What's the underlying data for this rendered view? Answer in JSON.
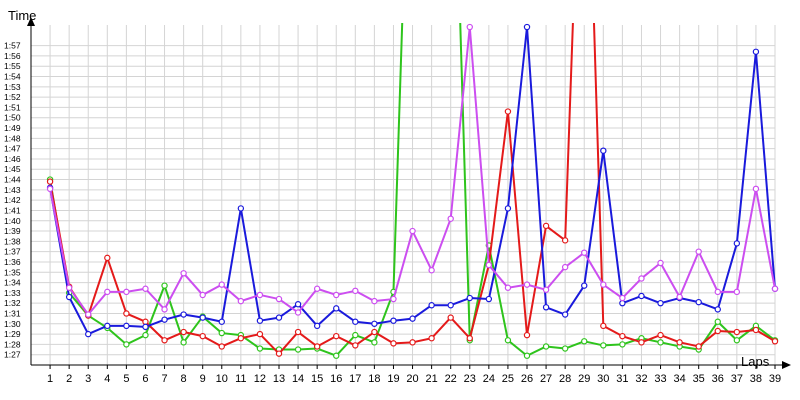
{
  "chart_data": {
    "type": "line",
    "title": "",
    "xlabel": "Laps",
    "ylabel": "Time",
    "grid": true,
    "legend": "none",
    "x": [
      1,
      2,
      3,
      4,
      5,
      6,
      7,
      8,
      9,
      10,
      11,
      12,
      13,
      14,
      15,
      16,
      17,
      18,
      19,
      20,
      21,
      22,
      23,
      24,
      25,
      26,
      27,
      28,
      29,
      30,
      31,
      32,
      33,
      34,
      35,
      36,
      37,
      38,
      39
    ],
    "xlim": [
      0,
      39
    ],
    "ylim": [
      "1:26",
      "1:59"
    ],
    "y_ticks": [
      "1:27",
      "1:28",
      "1:29",
      "1:30",
      "1:31",
      "1:32",
      "1:33",
      "1:34",
      "1:35",
      "1:36",
      "1:37",
      "1:38",
      "1:39",
      "1:40",
      "1:41",
      "1:42",
      "1:43",
      "1:44",
      "1:45",
      "1:46",
      "1:47",
      "1:48",
      "1:49",
      "1:50",
      "1:51",
      "1:52",
      "1:53",
      "1:54",
      "1:55",
      "1:56",
      "1:57"
    ],
    "series": [
      {
        "color": "#2ec41c",
        "values": [
          "1:44.0",
          "1:33.0",
          "1:30.8",
          "1:29.6",
          "1:28.0",
          "1:28.9",
          "1:33.7",
          "1:28.2",
          "1:30.7",
          "1:29.1",
          "1:28.9",
          "1:27.6",
          "1:27.5",
          "1:27.5",
          "1:27.6",
          "1:26.9",
          "1:28.9",
          "1:28.2",
          "1:33.1",
          "2:30.0",
          "2:30.0",
          "2:30.0",
          "1:28.4",
          "1:37.6",
          "1:28.4",
          "1:26.9",
          "1:27.8",
          "1:27.6",
          "1:28.3",
          "1:27.9",
          "1:28.0",
          "1:28.6",
          "1:28.2",
          "1:27.8",
          "1:27.5",
          "1:30.2",
          "1:28.4",
          "1:29.8",
          "1:28.4"
        ]
      },
      {
        "color": "#e41a1a",
        "values": [
          "1:43.8",
          "1:33.6",
          "1:30.8",
          "1:36.4",
          "1:31.0",
          "1:30.2",
          "1:28.4",
          "1:29.2",
          "1:28.8",
          "1:27.8",
          "1:28.6",
          "1:29.0",
          "1:27.1",
          "1:29.2",
          "1:27.8",
          "1:28.8",
          "1:27.9",
          "1:29.2",
          "1:28.1",
          "1:28.2",
          "1:28.6",
          "1:30.6",
          "1:28.6",
          "1:35.7",
          "1:50.6",
          "1:28.9",
          "1:39.5",
          "1:38.1",
          "2:30.0",
          "1:29.8",
          "1:28.8",
          "1:28.2",
          "1:28.9",
          "1:28.2",
          "1:27.8",
          "1:29.3",
          "1:29.2",
          "1:29.4",
          "1:28.3"
        ]
      },
      {
        "color": "#1a1adc",
        "values": [
          "1:43.2",
          "1:32.6",
          "1:29.0",
          "1:29.8",
          "1:29.8",
          "1:29.7",
          "1:30.4",
          "1:30.9",
          "1:30.6",
          "1:30.2",
          "1:41.2",
          "1:30.3",
          "1:30.6",
          "1:31.9",
          "1:29.8",
          "1:31.5",
          "1:30.2",
          "1:30.0",
          "1:30.3",
          "1:30.5",
          "1:31.8",
          "1:31.8",
          "1:32.5",
          "1:32.4",
          "1:41.2",
          "1:58.8",
          "1:31.6",
          "1:30.9",
          "1:33.7",
          "1:46.8",
          "1:32.0",
          "1:32.7",
          "1:32.0",
          "1:32.5",
          "1:32.1",
          "1:31.4",
          "1:37.8",
          "1:56.4",
          "1:33.4"
        ]
      },
      {
        "color": "#cc4ef0",
        "values": [
          "1:43.1",
          "1:33.5",
          "1:30.9",
          "1:33.1",
          "1:33.1",
          "1:33.4",
          "1:31.4",
          "1:34.9",
          "1:32.8",
          "1:33.8",
          "1:32.2",
          "1:32.8",
          "1:32.4",
          "1:31.1",
          "1:33.4",
          "1:32.8",
          "1:33.2",
          "1:32.2",
          "1:32.4",
          "1:39.0",
          "1:35.2",
          "1:40.2",
          "1:58.8",
          "1:35.7",
          "1:33.5",
          "1:33.8",
          "1:33.3",
          "1:35.5",
          "1:36.9",
          "1:33.8",
          "1:32.5",
          "1:34.4",
          "1:35.9",
          "1:32.6",
          "1:37.0",
          "1:33.1",
          "1:33.1",
          "1:43.1",
          "1:33.4"
        ]
      }
    ]
  }
}
